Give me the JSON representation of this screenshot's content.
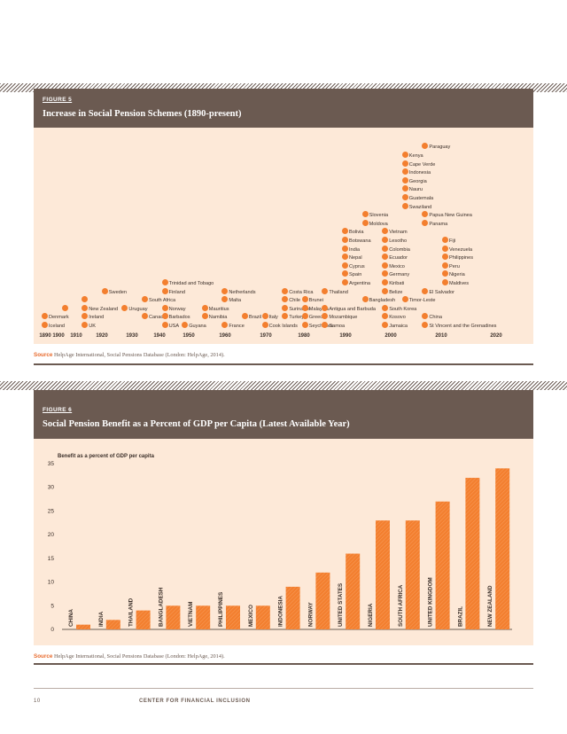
{
  "figure5": {
    "label": "FIGURE 5",
    "title": "Increase in Social Pension Schemes (1890-present)",
    "axis_ticks": [
      "1890",
      "1900",
      "1910",
      "1920",
      "1930",
      "1940",
      "1950",
      "1960",
      "1970",
      "1980",
      "1990",
      "2000",
      "2010",
      "2020"
    ],
    "entries": [
      {
        "country": "Iceland",
        "col": 0,
        "row": 0
      },
      {
        "country": "Denmark",
        "col": 0,
        "row": 1
      },
      {
        "country": "",
        "col": 1,
        "row": 2
      },
      {
        "country": "UK",
        "col": 2,
        "row": 0
      },
      {
        "country": "Ireland",
        "col": 2,
        "row": 1
      },
      {
        "country": "New Zealand",
        "col": 2,
        "row": 2
      },
      {
        "country": "",
        "col": 2,
        "row": 3
      },
      {
        "country": "Sweden",
        "col": 3,
        "row": 4
      },
      {
        "country": "Uruguay",
        "col": 4,
        "row": 2
      },
      {
        "country": "Canada",
        "col": 5,
        "row": 1
      },
      {
        "country": "South Africa",
        "col": 5,
        "row": 3
      },
      {
        "country": "USA",
        "col": 6,
        "row": 0
      },
      {
        "country": "Barbados",
        "col": 6,
        "row": 1
      },
      {
        "country": "Norway",
        "col": 6,
        "row": 2
      },
      {
        "country": "Finland",
        "col": 6,
        "row": 4
      },
      {
        "country": "Trinidad and Tobago",
        "col": 6,
        "row": 5
      },
      {
        "country": "Guyana",
        "col": 7,
        "row": 0
      },
      {
        "country": "Namibia",
        "col": 8,
        "row": 1
      },
      {
        "country": "Mauritius",
        "col": 8,
        "row": 2
      },
      {
        "country": "France",
        "col": 9,
        "row": 0
      },
      {
        "country": "Malta",
        "col": 9,
        "row": 3
      },
      {
        "country": "Netherlands",
        "col": 9,
        "row": 4
      },
      {
        "country": "Brazil",
        "col": 10,
        "row": 1
      },
      {
        "country": "Cook Islands",
        "col": 11,
        "row": 0
      },
      {
        "country": "Italy",
        "col": 11,
        "row": 1
      },
      {
        "country": "Turkey",
        "col": 12,
        "row": 1
      },
      {
        "country": "Suriname",
        "col": 12,
        "row": 2
      },
      {
        "country": "Chile",
        "col": 12,
        "row": 3
      },
      {
        "country": "Costa Rica",
        "col": 12,
        "row": 4
      },
      {
        "country": "Seychelles",
        "col": 13,
        "row": 0
      },
      {
        "country": "Greece",
        "col": 13,
        "row": 1
      },
      {
        "country": "Malaysia",
        "col": 13,
        "row": 2
      },
      {
        "country": "Brunei",
        "col": 13,
        "row": 3
      },
      {
        "country": "Samoa",
        "col": 14,
        "row": 0
      },
      {
        "country": "Mozambique",
        "col": 14,
        "row": 1
      },
      {
        "country": "Antigua and Barbuda",
        "col": 14,
        "row": 2
      },
      {
        "country": "Thailand",
        "col": 14,
        "row": 4
      },
      {
        "country": "Argentina",
        "col": 15,
        "row": 5
      },
      {
        "country": "Spain",
        "col": 15,
        "row": 6
      },
      {
        "country": "Cyprus",
        "col": 15,
        "row": 7
      },
      {
        "country": "Nepal",
        "col": 15,
        "row": 8
      },
      {
        "country": "India",
        "col": 15,
        "row": 9
      },
      {
        "country": "Botswana",
        "col": 15,
        "row": 10
      },
      {
        "country": "Bolivia",
        "col": 15,
        "row": 11
      },
      {
        "country": "Moldova",
        "col": 16,
        "row": 12
      },
      {
        "country": "Slovenia",
        "col": 16,
        "row": 13
      },
      {
        "country": "Bangladesh",
        "col": 16,
        "row": 3
      },
      {
        "country": "Jamaica",
        "col": 17,
        "row": 0
      },
      {
        "country": "Kosovo",
        "col": 17,
        "row": 1
      },
      {
        "country": "South Korea",
        "col": 17,
        "row": 2
      },
      {
        "country": "Timor-Leste",
        "col": 18,
        "row": 3
      },
      {
        "country": "Belize",
        "col": 17,
        "row": 4
      },
      {
        "country": "Kiribati",
        "col": 17,
        "row": 5
      },
      {
        "country": "Germany",
        "col": 17,
        "row": 6
      },
      {
        "country": "Mexico",
        "col": 17,
        "row": 7
      },
      {
        "country": "Ecuador",
        "col": 17,
        "row": 8
      },
      {
        "country": "Colombia",
        "col": 17,
        "row": 9
      },
      {
        "country": "Lesotho",
        "col": 17,
        "row": 10
      },
      {
        "country": "Vietnam",
        "col": 17,
        "row": 11
      },
      {
        "country": "Swaziland",
        "col": 18,
        "row": 14
      },
      {
        "country": "Guatemala",
        "col": 18,
        "row": 15
      },
      {
        "country": "Nauru",
        "col": 18,
        "row": 16
      },
      {
        "country": "Georgia",
        "col": 18,
        "row": 17
      },
      {
        "country": "Indonesia",
        "col": 18,
        "row": 18
      },
      {
        "country": "Cape Verde",
        "col": 18,
        "row": 19
      },
      {
        "country": "Kenya",
        "col": 18,
        "row": 20
      },
      {
        "country": "Paraguay",
        "col": 19,
        "row": 21
      },
      {
        "country": "St Vincent and the Grenadines",
        "col": 19,
        "row": 0
      },
      {
        "country": "China",
        "col": 19,
        "row": 1
      },
      {
        "country": "El Salvador",
        "col": 19,
        "row": 4
      },
      {
        "country": "Maldives",
        "col": 20,
        "row": 5
      },
      {
        "country": "Nigeria",
        "col": 20,
        "row": 6
      },
      {
        "country": "Peru",
        "col": 20,
        "row": 7
      },
      {
        "country": "Philippines",
        "col": 20,
        "row": 8
      },
      {
        "country": "Venezuela",
        "col": 20,
        "row": 9
      },
      {
        "country": "Fiji",
        "col": 20,
        "row": 10
      },
      {
        "country": "Panama",
        "col": 19,
        "row": 12
      },
      {
        "country": "Papua New Guinea",
        "col": 19,
        "row": 13
      }
    ],
    "source_label": "Source",
    "source_text": "HelpAge International, Social Pensions Database (London: HelpAge, 2014)."
  },
  "figure6": {
    "label": "FIGURE 6",
    "title": "Social Pension Benefit as a Percent of GDP per Capita (Latest Available Year)",
    "source_label": "Source",
    "source_text": "HelpAge International, Social Pensions Database (London: HelpAge, 2014)."
  },
  "chart_data": {
    "type": "bar",
    "title": "",
    "ylabel": "Benefit as a percent of GDP per capita",
    "xlabel": "",
    "ylim": [
      0,
      35
    ],
    "yticks": [
      "0",
      "5",
      "10",
      "15",
      "20",
      "25",
      "30",
      "35"
    ],
    "categories": [
      "CHINA",
      "INDIA",
      "THAILAND",
      "BANGLADESH",
      "VIETNAM",
      "PHILIPPINES",
      "MEXICO",
      "INDONESIA",
      "NORWAY",
      "UNITED STATES",
      "NIGERIA",
      "SOUTH AFRICA",
      "UNITED KINGDOM",
      "BRAZIL",
      "NEW ZEALAND"
    ],
    "values": [
      1,
      2,
      4,
      5,
      5,
      5,
      5,
      9,
      12,
      16,
      23,
      23,
      27,
      32,
      34
    ],
    "bar_color": "#f37f2f",
    "grid": false
  },
  "footer": {
    "page_number": "10",
    "org": "CENTER FOR FINANCIAL INCLUSION"
  },
  "colors": {
    "band": "#6b5a51",
    "panel": "#fde9d8",
    "accent": "#f37f2f"
  }
}
